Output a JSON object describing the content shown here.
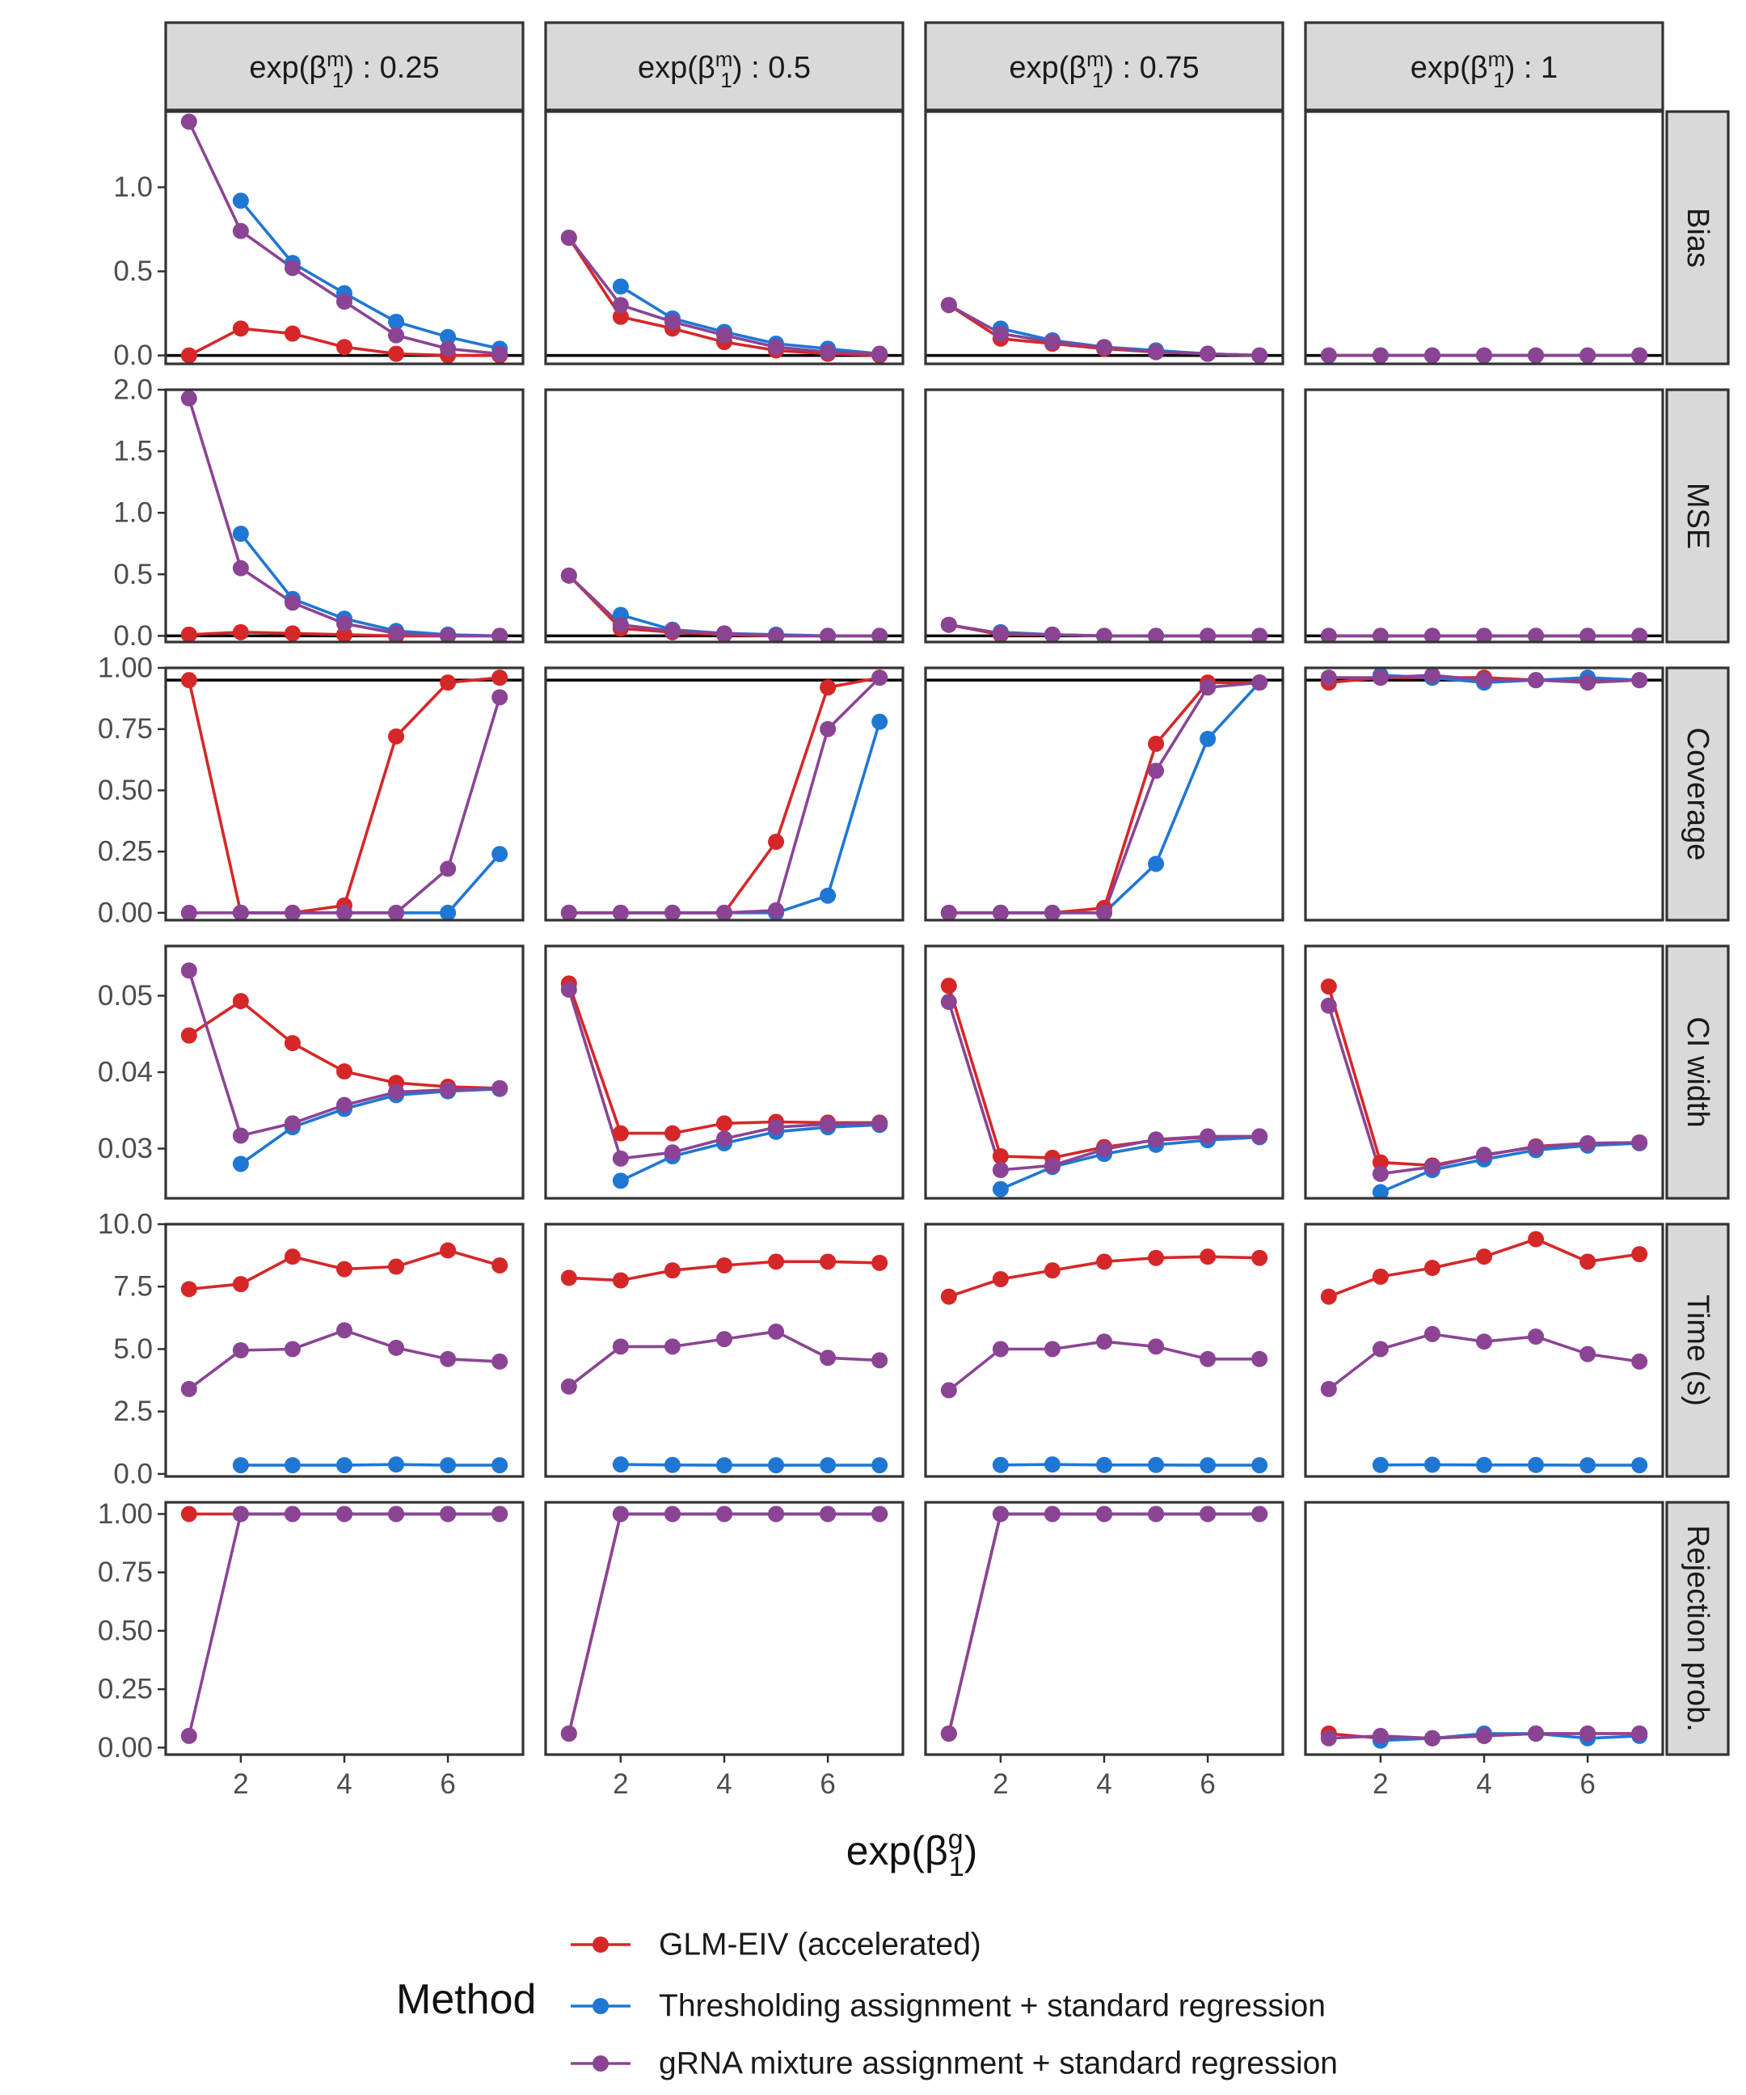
{
  "colors": {
    "glm": "#d62728",
    "thresh": "#1f77d4",
    "mix": "#8b4494",
    "strip_bg": "#d9d9d9",
    "reference": "#000000"
  },
  "chart_data": {
    "type": "line",
    "title": "",
    "xlabel": "exp(β1g)",
    "x_ticks": [
      2,
      4,
      6
    ],
    "xlim": [
      0.55,
      7.45
    ],
    "x": [
      1,
      2,
      3,
      4,
      5,
      6,
      7
    ],
    "columns": [
      {
        "key": "c025",
        "label": "exp(β1m) : 0.25",
        "prefix": "exp(",
        "beta": "β",
        "sup": "m",
        "sub": "1",
        "suffix": ") : 0.25"
      },
      {
        "key": "c05",
        "label": "exp(β1m) : 0.5",
        "prefix": "exp(",
        "beta": "β",
        "sup": "m",
        "sub": "1",
        "suffix": ") : 0.5"
      },
      {
        "key": "c075",
        "label": "exp(β1m) : 0.75",
        "prefix": "exp(",
        "beta": "β",
        "sup": "m",
        "sub": "1",
        "suffix": ") : 0.75"
      },
      {
        "key": "c1",
        "label": "exp(β1m) : 1",
        "prefix": "exp(",
        "beta": "β",
        "sup": "m",
        "sub": "1",
        "suffix": ") : 1"
      }
    ],
    "rows": [
      {
        "key": "bias",
        "label": "Bias",
        "ylim": [
          -0.05,
          1.45
        ],
        "ticks": [
          0,
          0.5,
          1.0
        ],
        "tick_labels": [
          "0.0",
          "0.5",
          "1.0"
        ],
        "reference": 0
      },
      {
        "key": "mse",
        "label": "MSE",
        "ylim": [
          -0.05,
          2.0
        ],
        "ticks": [
          0,
          0.5,
          1.0,
          1.5,
          2.0
        ],
        "tick_labels": [
          "0.0",
          "0.5",
          "1.0",
          "1.5",
          "2.0"
        ],
        "reference": 0
      },
      {
        "key": "coverage",
        "label": "Coverage",
        "ylim": [
          -0.03,
          1.0
        ],
        "ticks": [
          0,
          0.25,
          0.5,
          0.75,
          1.0
        ],
        "tick_labels": [
          "0.00",
          "0.25",
          "0.50",
          "0.75",
          "1.00"
        ],
        "reference": 0.95
      },
      {
        "key": "ciwidth",
        "label": "CI width",
        "ylim": [
          0.0235,
          0.0565
        ],
        "ticks": [
          0.03,
          0.04,
          0.05
        ],
        "tick_labels": [
          "0.03",
          "0.04",
          "0.05"
        ],
        "reference": null
      },
      {
        "key": "time",
        "label": "Time (s)",
        "ylim": [
          -0.1,
          10.0
        ],
        "ticks": [
          0,
          2.5,
          5.0,
          7.5,
          10.0
        ],
        "tick_labels": [
          "0.0",
          "2.5",
          "5.0",
          "7.5",
          "10.0"
        ],
        "reference": null
      },
      {
        "key": "reject",
        "label": "Rejection prob.",
        "ylim": [
          -0.03,
          1.05
        ],
        "ticks": [
          0,
          0.25,
          0.5,
          0.75,
          1.0
        ],
        "tick_labels": [
          "0.00",
          "0.25",
          "0.50",
          "0.75",
          "1.00"
        ],
        "reference": null
      }
    ],
    "series": [
      {
        "key": "glm",
        "name": "GLM-EIV (accelerated)"
      },
      {
        "key": "thresh",
        "name": "Thresholding assignment + standard regression"
      },
      {
        "key": "mix",
        "name": "gRNA mixture assignment + standard regression"
      }
    ],
    "values": {
      "bias": {
        "c025": {
          "glm": [
            0.0,
            0.16,
            0.13,
            0.05,
            0.01,
            0.0,
            0.0
          ],
          "thresh": [
            null,
            0.92,
            0.55,
            0.37,
            0.2,
            0.11,
            0.04
          ],
          "mix": [
            1.39,
            0.74,
            0.52,
            0.32,
            0.12,
            0.04,
            0.01
          ]
        },
        "c05": {
          "glm": [
            0.7,
            0.23,
            0.16,
            0.08,
            0.03,
            0.01,
            0.0
          ],
          "thresh": [
            null,
            0.41,
            0.22,
            0.14,
            0.07,
            0.04,
            0.01
          ],
          "mix": [
            0.7,
            0.3,
            0.2,
            0.12,
            0.05,
            0.02,
            0.01
          ]
        },
        "c075": {
          "glm": [
            0.3,
            0.1,
            0.07,
            0.04,
            0.02,
            0.01,
            0.0
          ],
          "thresh": [
            null,
            0.16,
            0.09,
            0.05,
            0.03,
            0.01,
            0.0
          ],
          "mix": [
            0.3,
            0.13,
            0.08,
            0.05,
            0.02,
            0.01,
            0.0
          ]
        },
        "c1": {
          "glm": [
            0,
            0,
            0,
            0,
            0,
            0,
            0
          ],
          "thresh": [
            null,
            0,
            0,
            0,
            0,
            0,
            0
          ],
          "mix": [
            0,
            0,
            0,
            0,
            0,
            0,
            0
          ]
        }
      },
      "mse": {
        "c025": {
          "glm": [
            0.01,
            0.03,
            0.02,
            0.01,
            0.0,
            0.0,
            0.0
          ],
          "thresh": [
            null,
            0.83,
            0.3,
            0.14,
            0.04,
            0.01,
            0.0
          ],
          "mix": [
            1.93,
            0.55,
            0.27,
            0.1,
            0.02,
            0.0,
            0.0
          ]
        },
        "c05": {
          "glm": [
            0.49,
            0.06,
            0.03,
            0.01,
            0.0,
            0.0,
            0.0
          ],
          "thresh": [
            null,
            0.17,
            0.05,
            0.02,
            0.01,
            0.0,
            0.0
          ],
          "mix": [
            0.49,
            0.09,
            0.04,
            0.02,
            0.0,
            0.0,
            0.0
          ]
        },
        "c075": {
          "glm": [
            0.09,
            0.01,
            0.01,
            0.0,
            0.0,
            0.0,
            0.0
          ],
          "thresh": [
            null,
            0.03,
            0.01,
            0.0,
            0.0,
            0.0,
            0.0
          ],
          "mix": [
            0.09,
            0.02,
            0.01,
            0.0,
            0.0,
            0.0,
            0.0
          ]
        },
        "c1": {
          "glm": [
            0,
            0,
            0,
            0,
            0,
            0,
            0
          ],
          "thresh": [
            null,
            0,
            0,
            0,
            0,
            0,
            0
          ],
          "mix": [
            0,
            0,
            0,
            0,
            0,
            0,
            0
          ]
        }
      },
      "coverage": {
        "c025": {
          "glm": [
            0.95,
            0.0,
            0.0,
            0.03,
            0.72,
            0.94,
            0.96
          ],
          "thresh": [
            null,
            0.0,
            0.0,
            0.0,
            0.0,
            0.0,
            0.24
          ],
          "mix": [
            0.0,
            0.0,
            0.0,
            0.0,
            0.0,
            0.18,
            0.88
          ]
        },
        "c05": {
          "glm": [
            0.0,
            0.0,
            0.0,
            0.0,
            0.29,
            0.92,
            0.96
          ],
          "thresh": [
            null,
            0.0,
            0.0,
            0.0,
            0.0,
            0.07,
            0.78
          ],
          "mix": [
            0.0,
            0.0,
            0.0,
            0.0,
            0.01,
            0.75,
            0.96
          ]
        },
        "c075": {
          "glm": [
            0.0,
            0.0,
            0.0,
            0.02,
            0.69,
            0.94,
            0.94
          ],
          "thresh": [
            null,
            0.0,
            0.0,
            0.0,
            0.2,
            0.71,
            0.94
          ],
          "mix": [
            0.0,
            0.0,
            0.0,
            0.0,
            0.58,
            0.92,
            0.94
          ]
        },
        "c1": {
          "glm": [
            0.94,
            0.96,
            0.96,
            0.96,
            0.95,
            0.95,
            0.95
          ],
          "thresh": [
            null,
            0.97,
            0.96,
            0.94,
            0.95,
            0.96,
            0.95
          ],
          "mix": [
            0.96,
            0.96,
            0.97,
            0.95,
            0.95,
            0.94,
            0.95
          ]
        }
      },
      "ciwidth": {
        "c025": {
          "glm": [
            0.0448,
            0.0493,
            0.0438,
            0.0401,
            0.0386,
            0.0381,
            0.0379
          ],
          "thresh": [
            null,
            0.028,
            0.0328,
            0.0352,
            0.037,
            0.0375,
            0.0378
          ],
          "mix": [
            0.0533,
            0.0317,
            0.0333,
            0.0357,
            0.0374,
            0.0377,
            0.0379
          ]
        },
        "c05": {
          "glm": [
            0.0516,
            0.032,
            0.032,
            0.0333,
            0.0335,
            0.0334,
            0.0334
          ],
          "thresh": [
            null,
            0.0258,
            0.029,
            0.0307,
            0.0322,
            0.0328,
            0.0331
          ],
          "mix": [
            0.0508,
            0.0287,
            0.0295,
            0.0313,
            0.0328,
            0.0332,
            0.0333
          ]
        },
        "c075": {
          "glm": [
            0.0513,
            0.029,
            0.0288,
            0.0302,
            0.0311,
            0.0315,
            0.0316
          ],
          "thresh": [
            null,
            0.0247,
            0.0276,
            0.0293,
            0.0305,
            0.0311,
            0.0315
          ],
          "mix": [
            0.0492,
            0.0272,
            0.0278,
            0.0299,
            0.0312,
            0.0316,
            0.0316
          ]
        },
        "c1": {
          "glm": [
            0.0512,
            0.0282,
            0.0278,
            0.0291,
            0.0303,
            0.0307,
            0.0308
          ],
          "thresh": [
            null,
            0.0243,
            0.0272,
            0.0286,
            0.0298,
            0.0304,
            0.0307
          ],
          "mix": [
            0.0487,
            0.0267,
            0.0276,
            0.0292,
            0.0302,
            0.0307,
            0.0308
          ]
        }
      },
      "time": {
        "c025": {
          "glm": [
            7.4,
            7.6,
            8.7,
            8.2,
            8.3,
            8.95,
            8.35
          ],
          "thresh": [
            null,
            0.35,
            0.35,
            0.35,
            0.38,
            0.35,
            0.35
          ],
          "mix": [
            3.4,
            4.95,
            5.0,
            5.75,
            5.05,
            4.6,
            4.5
          ]
        },
        "c05": {
          "glm": [
            7.85,
            7.75,
            8.15,
            8.35,
            8.5,
            8.5,
            8.45
          ],
          "thresh": [
            null,
            0.38,
            0.36,
            0.35,
            0.35,
            0.35,
            0.35
          ],
          "mix": [
            3.5,
            5.1,
            5.1,
            5.4,
            5.7,
            4.65,
            4.55
          ]
        },
        "c075": {
          "glm": [
            7.1,
            7.8,
            8.15,
            8.5,
            8.65,
            8.7,
            8.65
          ],
          "thresh": [
            null,
            0.36,
            0.38,
            0.36,
            0.36,
            0.35,
            0.35
          ],
          "mix": [
            3.35,
            5.0,
            5.0,
            5.3,
            5.1,
            4.6,
            4.6
          ]
        },
        "c1": {
          "glm": [
            7.1,
            7.9,
            8.25,
            8.7,
            9.4,
            8.5,
            8.8
          ],
          "thresh": [
            null,
            0.36,
            0.37,
            0.36,
            0.36,
            0.35,
            0.35
          ],
          "mix": [
            3.4,
            5.0,
            5.6,
            5.3,
            5.5,
            4.8,
            4.5
          ]
        }
      },
      "reject": {
        "c025": {
          "glm": [
            1.0,
            1.0,
            1.0,
            1.0,
            1.0,
            1.0,
            1.0
          ],
          "thresh": [
            null,
            1.0,
            1.0,
            1.0,
            1.0,
            1.0,
            1.0
          ],
          "mix": [
            0.05,
            1.0,
            1.0,
            1.0,
            1.0,
            1.0,
            1.0
          ]
        },
        "c05": {
          "glm": [
            0.06,
            1.0,
            1.0,
            1.0,
            1.0,
            1.0,
            1.0
          ],
          "thresh": [
            null,
            1.0,
            1.0,
            1.0,
            1.0,
            1.0,
            1.0
          ],
          "mix": [
            0.06,
            1.0,
            1.0,
            1.0,
            1.0,
            1.0,
            1.0
          ]
        },
        "c075": {
          "glm": [
            0.06,
            1.0,
            1.0,
            1.0,
            1.0,
            1.0,
            1.0
          ],
          "thresh": [
            null,
            1.0,
            1.0,
            1.0,
            1.0,
            1.0,
            1.0
          ],
          "mix": [
            0.06,
            1.0,
            1.0,
            1.0,
            1.0,
            1.0,
            1.0
          ]
        },
        "c1": {
          "glm": [
            0.06,
            0.04,
            0.04,
            0.05,
            0.06,
            0.06,
            0.06
          ],
          "thresh": [
            null,
            0.03,
            0.04,
            0.06,
            0.06,
            0.04,
            0.05
          ],
          "mix": [
            0.04,
            0.05,
            0.04,
            0.05,
            0.06,
            0.06,
            0.06
          ]
        }
      }
    },
    "legend": {
      "title": "Method",
      "position": "bottom"
    }
  }
}
